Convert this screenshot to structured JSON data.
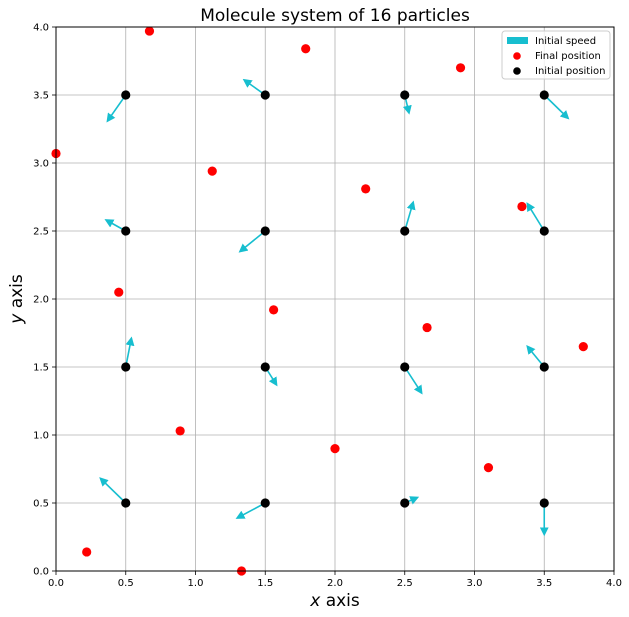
{
  "chart_data": {
    "type": "scatter",
    "title": "Molecule system of 16 particles",
    "xlabel_var": "x",
    "xlabel_rest": " axis",
    "ylabel_var": "y",
    "ylabel_rest": " axis",
    "xlim": [
      0,
      4
    ],
    "ylim": [
      0,
      4
    ],
    "xticks": [
      "0.0",
      "0.5",
      "1.0",
      "1.5",
      "2.0",
      "2.5",
      "3.0",
      "3.5",
      "4.0"
    ],
    "yticks": [
      "0.0",
      "0.5",
      "1.0",
      "1.5",
      "2.0",
      "2.5",
      "3.0",
      "3.5",
      "4.0"
    ],
    "grid": true,
    "legend_position": "top-right",
    "colors": {
      "speed": "#17becf",
      "final": "#ff0000",
      "initial": "#000000",
      "grid": "#b0b0b0"
    },
    "legend": [
      {
        "label": "Initial speed",
        "marker": "arrow"
      },
      {
        "label": "Final position",
        "marker": "red-dot"
      },
      {
        "label": "Initial position",
        "marker": "black-dot"
      }
    ],
    "series": [
      {
        "name": "Initial speed",
        "values": [
          {
            "x": 0.5,
            "y": 3.5,
            "dx": -0.13,
            "dy": -0.19
          },
          {
            "x": 1.5,
            "y": 3.5,
            "dx": -0.15,
            "dy": 0.11
          },
          {
            "x": 2.5,
            "y": 3.5,
            "dx": 0.03,
            "dy": -0.13
          },
          {
            "x": 3.5,
            "y": 3.5,
            "dx": 0.17,
            "dy": -0.17
          },
          {
            "x": 0.5,
            "y": 2.5,
            "dx": -0.14,
            "dy": 0.08
          },
          {
            "x": 1.5,
            "y": 2.5,
            "dx": -0.18,
            "dy": -0.15
          },
          {
            "x": 2.5,
            "y": 2.5,
            "dx": 0.06,
            "dy": 0.21
          },
          {
            "x": 3.5,
            "y": 2.5,
            "dx": -0.12,
            "dy": 0.2
          },
          {
            "x": 0.5,
            "y": 1.5,
            "dx": 0.04,
            "dy": 0.21
          },
          {
            "x": 1.5,
            "y": 1.5,
            "dx": 0.08,
            "dy": -0.13
          },
          {
            "x": 2.5,
            "y": 1.5,
            "dx": 0.12,
            "dy": -0.19
          },
          {
            "x": 3.5,
            "y": 1.5,
            "dx": -0.12,
            "dy": 0.15
          },
          {
            "x": 0.5,
            "y": 0.5,
            "dx": -0.18,
            "dy": 0.18
          },
          {
            "x": 1.5,
            "y": 0.5,
            "dx": -0.2,
            "dy": -0.11
          },
          {
            "x": 2.5,
            "y": 0.5,
            "dx": 0.09,
            "dy": 0.04
          },
          {
            "x": 3.5,
            "y": 0.5,
            "dx": 0.0,
            "dy": -0.23
          }
        ]
      },
      {
        "name": "Final position",
        "values": [
          {
            "x": 0.67,
            "y": 3.97
          },
          {
            "x": 1.79,
            "y": 3.84
          },
          {
            "x": 2.9,
            "y": 3.7
          },
          {
            "x": 0.0,
            "y": 3.07
          },
          {
            "x": 1.12,
            "y": 2.94
          },
          {
            "x": 2.22,
            "y": 2.81
          },
          {
            "x": 3.34,
            "y": 2.68
          },
          {
            "x": 0.45,
            "y": 2.05
          },
          {
            "x": 1.56,
            "y": 1.92
          },
          {
            "x": 2.66,
            "y": 1.79
          },
          {
            "x": 3.78,
            "y": 1.65
          },
          {
            "x": 0.89,
            "y": 1.03
          },
          {
            "x": 2.0,
            "y": 0.9
          },
          {
            "x": 3.1,
            "y": 0.76
          },
          {
            "x": 0.22,
            "y": 0.14
          },
          {
            "x": 1.33,
            "y": 0.0
          }
        ]
      },
      {
        "name": "Initial position",
        "values": [
          {
            "x": 0.5,
            "y": 0.5
          },
          {
            "x": 1.5,
            "y": 0.5
          },
          {
            "x": 2.5,
            "y": 0.5
          },
          {
            "x": 3.5,
            "y": 0.5
          },
          {
            "x": 0.5,
            "y": 1.5
          },
          {
            "x": 1.5,
            "y": 1.5
          },
          {
            "x": 2.5,
            "y": 1.5
          },
          {
            "x": 3.5,
            "y": 1.5
          },
          {
            "x": 0.5,
            "y": 2.5
          },
          {
            "x": 1.5,
            "y": 2.5
          },
          {
            "x": 2.5,
            "y": 2.5
          },
          {
            "x": 3.5,
            "y": 2.5
          },
          {
            "x": 0.5,
            "y": 3.5
          },
          {
            "x": 1.5,
            "y": 3.5
          },
          {
            "x": 2.5,
            "y": 3.5
          },
          {
            "x": 3.5,
            "y": 3.5
          }
        ]
      }
    ]
  }
}
